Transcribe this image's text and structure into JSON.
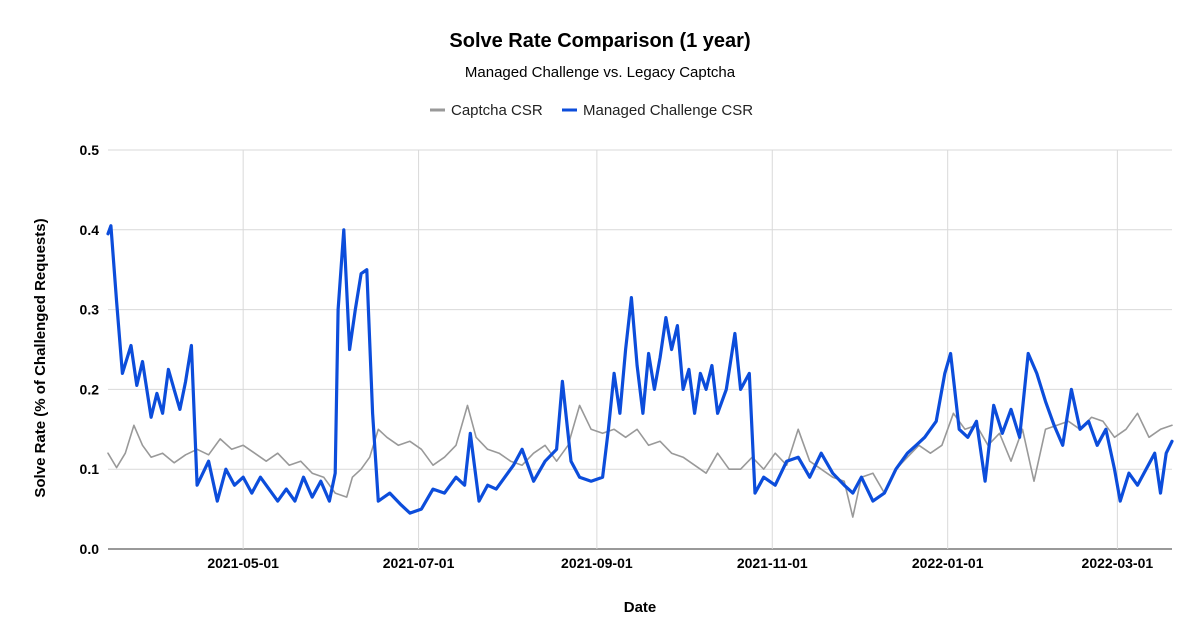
{
  "chart_data": {
    "type": "line",
    "title": "Solve Rate Comparison (1 year)",
    "subtitle": "Managed Challenge vs. Legacy Captcha",
    "xlabel": "Date",
    "ylabel": "Solve Rate (% of Challenged Requests)",
    "x_range": [
      "2021-03-15",
      "2022-03-20"
    ],
    "ylim": [
      0,
      0.5
    ],
    "y_ticks": [
      {
        "value": 0.0,
        "label": "0.0"
      },
      {
        "value": 0.1,
        "label": "0.1"
      },
      {
        "value": 0.2,
        "label": "0.2"
      },
      {
        "value": 0.3,
        "label": "0.3"
      },
      {
        "value": 0.4,
        "label": "0.4"
      },
      {
        "value": 0.5,
        "label": "0.5"
      }
    ],
    "x_ticks": [
      {
        "date": "2021-05-01",
        "label": "2021-05-01"
      },
      {
        "date": "2021-07-01",
        "label": "2021-07-01"
      },
      {
        "date": "2021-09-01",
        "label": "2021-09-01"
      },
      {
        "date": "2021-11-01",
        "label": "2021-11-01"
      },
      {
        "date": "2022-01-01",
        "label": "2022-01-01"
      },
      {
        "date": "2022-03-01",
        "label": "2022-03-01"
      }
    ],
    "grid": true,
    "legend_position": "top-center",
    "series": [
      {
        "name": "Captcha CSR",
        "color": "#999999",
        "line_width": 1.6,
        "points": [
          [
            "2021-03-15",
            0.12
          ],
          [
            "2021-03-18",
            0.102
          ],
          [
            "2021-03-21",
            0.12
          ],
          [
            "2021-03-24",
            0.155
          ],
          [
            "2021-03-27",
            0.13
          ],
          [
            "2021-03-30",
            0.115
          ],
          [
            "2021-04-03",
            0.12
          ],
          [
            "2021-04-07",
            0.108
          ],
          [
            "2021-04-11",
            0.118
          ],
          [
            "2021-04-15",
            0.125
          ],
          [
            "2021-04-19",
            0.118
          ],
          [
            "2021-04-23",
            0.138
          ],
          [
            "2021-04-27",
            0.125
          ],
          [
            "2021-05-01",
            0.13
          ],
          [
            "2021-05-05",
            0.12
          ],
          [
            "2021-05-09",
            0.11
          ],
          [
            "2021-05-13",
            0.12
          ],
          [
            "2021-05-17",
            0.105
          ],
          [
            "2021-05-21",
            0.11
          ],
          [
            "2021-05-25",
            0.095
          ],
          [
            "2021-05-29",
            0.09
          ],
          [
            "2021-06-02",
            0.07
          ],
          [
            "2021-06-06",
            0.065
          ],
          [
            "2021-06-08",
            0.09
          ],
          [
            "2021-06-11",
            0.1
          ],
          [
            "2021-06-14",
            0.115
          ],
          [
            "2021-06-17",
            0.15
          ],
          [
            "2021-06-20",
            0.14
          ],
          [
            "2021-06-24",
            0.13
          ],
          [
            "2021-06-28",
            0.135
          ],
          [
            "2021-07-02",
            0.125
          ],
          [
            "2021-07-06",
            0.105
          ],
          [
            "2021-07-10",
            0.115
          ],
          [
            "2021-07-14",
            0.13
          ],
          [
            "2021-07-18",
            0.18
          ],
          [
            "2021-07-21",
            0.14
          ],
          [
            "2021-07-25",
            0.125
          ],
          [
            "2021-07-29",
            0.12
          ],
          [
            "2021-08-02",
            0.11
          ],
          [
            "2021-08-06",
            0.105
          ],
          [
            "2021-08-10",
            0.12
          ],
          [
            "2021-08-14",
            0.13
          ],
          [
            "2021-08-18",
            0.11
          ],
          [
            "2021-08-22",
            0.13
          ],
          [
            "2021-08-26",
            0.18
          ],
          [
            "2021-08-30",
            0.15
          ],
          [
            "2021-09-03",
            0.145
          ],
          [
            "2021-09-07",
            0.15
          ],
          [
            "2021-09-11",
            0.14
          ],
          [
            "2021-09-15",
            0.15
          ],
          [
            "2021-09-19",
            0.13
          ],
          [
            "2021-09-23",
            0.135
          ],
          [
            "2021-09-27",
            0.12
          ],
          [
            "2021-10-01",
            0.115
          ],
          [
            "2021-10-05",
            0.105
          ],
          [
            "2021-10-09",
            0.095
          ],
          [
            "2021-10-13",
            0.12
          ],
          [
            "2021-10-17",
            0.1
          ],
          [
            "2021-10-21",
            0.1
          ],
          [
            "2021-10-25",
            0.115
          ],
          [
            "2021-10-29",
            0.1
          ],
          [
            "2021-11-02",
            0.12
          ],
          [
            "2021-11-06",
            0.105
          ],
          [
            "2021-11-10",
            0.15
          ],
          [
            "2021-11-14",
            0.11
          ],
          [
            "2021-11-18",
            0.1
          ],
          [
            "2021-11-22",
            0.09
          ],
          [
            "2021-11-26",
            0.085
          ],
          [
            "2021-11-29",
            0.04
          ],
          [
            "2021-12-02",
            0.09
          ],
          [
            "2021-12-06",
            0.095
          ],
          [
            "2021-12-10",
            0.07
          ],
          [
            "2021-12-14",
            0.1
          ],
          [
            "2021-12-18",
            0.115
          ],
          [
            "2021-12-22",
            0.13
          ],
          [
            "2021-12-26",
            0.12
          ],
          [
            "2021-12-30",
            0.13
          ],
          [
            "2022-01-03",
            0.17
          ],
          [
            "2022-01-07",
            0.15
          ],
          [
            "2022-01-11",
            0.155
          ],
          [
            "2022-01-15",
            0.13
          ],
          [
            "2022-01-19",
            0.145
          ],
          [
            "2022-01-23",
            0.11
          ],
          [
            "2022-01-27",
            0.15
          ],
          [
            "2022-01-31",
            0.085
          ],
          [
            "2022-02-04",
            0.15
          ],
          [
            "2022-02-08",
            0.155
          ],
          [
            "2022-02-12",
            0.16
          ],
          [
            "2022-02-16",
            0.15
          ],
          [
            "2022-02-20",
            0.165
          ],
          [
            "2022-02-24",
            0.16
          ],
          [
            "2022-02-28",
            0.14
          ],
          [
            "2022-03-04",
            0.15
          ],
          [
            "2022-03-08",
            0.17
          ],
          [
            "2022-03-12",
            0.14
          ],
          [
            "2022-03-16",
            0.15
          ],
          [
            "2022-03-20",
            0.155
          ]
        ]
      },
      {
        "name": "Managed Challenge CSR",
        "color": "#0c4ddb",
        "line_width": 3.2,
        "points": [
          [
            "2021-03-15",
            0.395
          ],
          [
            "2021-03-16",
            0.405
          ],
          [
            "2021-03-18",
            0.31
          ],
          [
            "2021-03-20",
            0.22
          ],
          [
            "2021-03-23",
            0.255
          ],
          [
            "2021-03-25",
            0.205
          ],
          [
            "2021-03-27",
            0.235
          ],
          [
            "2021-03-30",
            0.165
          ],
          [
            "2021-04-01",
            0.195
          ],
          [
            "2021-04-03",
            0.17
          ],
          [
            "2021-04-05",
            0.225
          ],
          [
            "2021-04-07",
            0.2
          ],
          [
            "2021-04-09",
            0.175
          ],
          [
            "2021-04-11",
            0.21
          ],
          [
            "2021-04-13",
            0.255
          ],
          [
            "2021-04-15",
            0.08
          ],
          [
            "2021-04-19",
            0.11
          ],
          [
            "2021-04-22",
            0.06
          ],
          [
            "2021-04-25",
            0.1
          ],
          [
            "2021-04-28",
            0.08
          ],
          [
            "2021-05-01",
            0.09
          ],
          [
            "2021-05-04",
            0.07
          ],
          [
            "2021-05-07",
            0.09
          ],
          [
            "2021-05-10",
            0.075
          ],
          [
            "2021-05-13",
            0.06
          ],
          [
            "2021-05-16",
            0.075
          ],
          [
            "2021-05-19",
            0.06
          ],
          [
            "2021-05-22",
            0.09
          ],
          [
            "2021-05-25",
            0.065
          ],
          [
            "2021-05-28",
            0.085
          ],
          [
            "2021-05-31",
            0.06
          ],
          [
            "2021-06-02",
            0.095
          ],
          [
            "2021-06-03",
            0.3
          ],
          [
            "2021-06-05",
            0.4
          ],
          [
            "2021-06-07",
            0.25
          ],
          [
            "2021-06-09",
            0.3
          ],
          [
            "2021-06-11",
            0.345
          ],
          [
            "2021-06-13",
            0.35
          ],
          [
            "2021-06-15",
            0.17
          ],
          [
            "2021-06-17",
            0.06
          ],
          [
            "2021-06-21",
            0.07
          ],
          [
            "2021-06-25",
            0.055
          ],
          [
            "2021-06-28",
            0.045
          ],
          [
            "2021-07-02",
            0.05
          ],
          [
            "2021-07-06",
            0.075
          ],
          [
            "2021-07-10",
            0.07
          ],
          [
            "2021-07-14",
            0.09
          ],
          [
            "2021-07-17",
            0.08
          ],
          [
            "2021-07-19",
            0.145
          ],
          [
            "2021-07-22",
            0.06
          ],
          [
            "2021-07-25",
            0.08
          ],
          [
            "2021-07-28",
            0.075
          ],
          [
            "2021-07-31",
            0.09
          ],
          [
            "2021-08-03",
            0.105
          ],
          [
            "2021-08-06",
            0.125
          ],
          [
            "2021-08-10",
            0.085
          ],
          [
            "2021-08-14",
            0.11
          ],
          [
            "2021-08-18",
            0.125
          ],
          [
            "2021-08-20",
            0.21
          ],
          [
            "2021-08-23",
            0.11
          ],
          [
            "2021-08-26",
            0.09
          ],
          [
            "2021-08-30",
            0.085
          ],
          [
            "2021-09-03",
            0.09
          ],
          [
            "2021-09-05",
            0.15
          ],
          [
            "2021-09-07",
            0.22
          ],
          [
            "2021-09-09",
            0.17
          ],
          [
            "2021-09-11",
            0.25
          ],
          [
            "2021-09-13",
            0.315
          ],
          [
            "2021-09-15",
            0.23
          ],
          [
            "2021-09-17",
            0.17
          ],
          [
            "2021-09-19",
            0.245
          ],
          [
            "2021-09-21",
            0.2
          ],
          [
            "2021-09-23",
            0.24
          ],
          [
            "2021-09-25",
            0.29
          ],
          [
            "2021-09-27",
            0.25
          ],
          [
            "2021-09-29",
            0.28
          ],
          [
            "2021-10-01",
            0.2
          ],
          [
            "2021-10-03",
            0.225
          ],
          [
            "2021-10-05",
            0.17
          ],
          [
            "2021-10-07",
            0.22
          ],
          [
            "2021-10-09",
            0.2
          ],
          [
            "2021-10-11",
            0.23
          ],
          [
            "2021-10-13",
            0.17
          ],
          [
            "2021-10-16",
            0.2
          ],
          [
            "2021-10-19",
            0.27
          ],
          [
            "2021-10-21",
            0.2
          ],
          [
            "2021-10-24",
            0.22
          ],
          [
            "2021-10-26",
            0.07
          ],
          [
            "2021-10-29",
            0.09
          ],
          [
            "2021-11-02",
            0.08
          ],
          [
            "2021-11-06",
            0.11
          ],
          [
            "2021-11-10",
            0.115
          ],
          [
            "2021-11-14",
            0.09
          ],
          [
            "2021-11-18",
            0.12
          ],
          [
            "2021-11-22",
            0.095
          ],
          [
            "2021-11-26",
            0.08
          ],
          [
            "2021-11-29",
            0.07
          ],
          [
            "2021-12-02",
            0.09
          ],
          [
            "2021-12-06",
            0.06
          ],
          [
            "2021-12-10",
            0.07
          ],
          [
            "2021-12-14",
            0.1
          ],
          [
            "2021-12-18",
            0.12
          ],
          [
            "2021-12-21",
            0.13
          ],
          [
            "2021-12-24",
            0.14
          ],
          [
            "2021-12-28",
            0.16
          ],
          [
            "2021-12-31",
            0.22
          ],
          [
            "2022-01-02",
            0.245
          ],
          [
            "2022-01-05",
            0.15
          ],
          [
            "2022-01-08",
            0.14
          ],
          [
            "2022-01-11",
            0.16
          ],
          [
            "2022-01-14",
            0.085
          ],
          [
            "2022-01-17",
            0.18
          ],
          [
            "2022-01-20",
            0.145
          ],
          [
            "2022-01-23",
            0.175
          ],
          [
            "2022-01-26",
            0.14
          ],
          [
            "2022-01-29",
            0.245
          ],
          [
            "2022-02-01",
            0.22
          ],
          [
            "2022-02-04",
            0.185
          ],
          [
            "2022-02-07",
            0.155
          ],
          [
            "2022-02-10",
            0.13
          ],
          [
            "2022-02-13",
            0.2
          ],
          [
            "2022-02-16",
            0.15
          ],
          [
            "2022-02-19",
            0.16
          ],
          [
            "2022-02-22",
            0.13
          ],
          [
            "2022-02-25",
            0.15
          ],
          [
            "2022-02-28",
            0.1
          ],
          [
            "2022-03-02",
            0.06
          ],
          [
            "2022-03-05",
            0.095
          ],
          [
            "2022-03-08",
            0.08
          ],
          [
            "2022-03-11",
            0.1
          ],
          [
            "2022-03-14",
            0.12
          ],
          [
            "2022-03-16",
            0.07
          ],
          [
            "2022-03-18",
            0.12
          ],
          [
            "2022-03-20",
            0.135
          ]
        ]
      }
    ]
  }
}
